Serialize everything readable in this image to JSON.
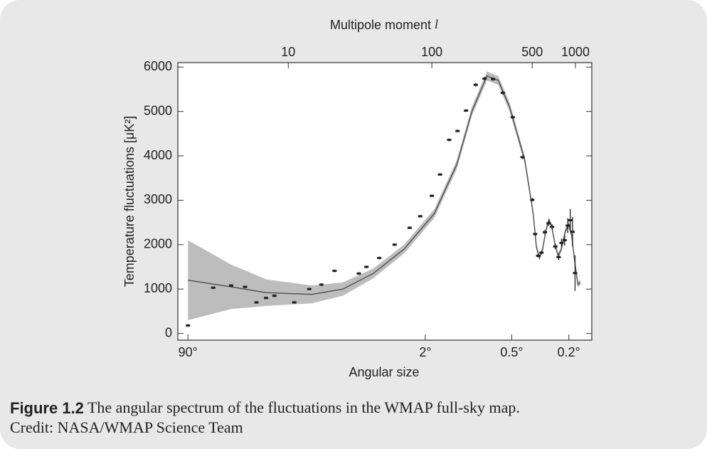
{
  "chart_data": {
    "type": "scatter",
    "x2_label": "Multipole moment",
    "x2_symbol": "l",
    "x_label": "Angular size",
    "y_label": "Temperature fluctuations [μK²]",
    "xscale": "log",
    "xlim": [
      1.7,
      1300
    ],
    "ylim": [
      -150,
      6100
    ],
    "yticks": [
      0,
      1000,
      2000,
      3000,
      4000,
      5000,
      6000
    ],
    "xticks": [
      {
        "value": 2,
        "label": "90°"
      },
      {
        "value": 90,
        "label": "2°"
      },
      {
        "value": 360,
        "label": "0.5°"
      },
      {
        "value": 900,
        "label": "0.2°"
      }
    ],
    "x2ticks": [
      10,
      100,
      500,
      1000
    ],
    "color": "#222222",
    "band_color": "#bdbdbd",
    "x": [
      2,
      3,
      4,
      5,
      6,
      7,
      8,
      11,
      14,
      17,
      21,
      31,
      35,
      43,
      55,
      70,
      83,
      100,
      114,
      132,
      151,
      173,
      202,
      233,
      267,
      312,
      366,
      428,
      501,
      524,
      550,
      580,
      613,
      650,
      688,
      724,
      764,
      800,
      841,
      885,
      921,
      955,
      994
    ],
    "values": [
      180,
      1030,
      1080,
      1050,
      700,
      800,
      850,
      700,
      1000,
      1100,
      1410,
      1350,
      1500,
      1700,
      2000,
      2380,
      2640,
      3100,
      3580,
      4360,
      4560,
      5020,
      5600,
      5740,
      5730,
      5420,
      4870,
      3970,
      3010,
      2240,
      1750,
      1820,
      2280,
      2480,
      2400,
      1960,
      1720,
      2040,
      2100,
      2430,
      2550,
      2290,
      1360
    ],
    "errors": [
      30,
      30,
      30,
      30,
      30,
      30,
      30,
      30,
      30,
      30,
      30,
      30,
      30,
      30,
      30,
      30,
      30,
      30,
      30,
      30,
      30,
      30,
      40,
      40,
      40,
      40,
      40,
      40,
      40,
      40,
      40,
      40,
      50,
      60,
      60,
      60,
      70,
      100,
      120,
      170,
      250,
      330,
      400
    ],
    "model_x": [
      2,
      4,
      7,
      14.6,
      24,
      39,
      64,
      104,
      149,
      190,
      242,
      290,
      348,
      444,
      508,
      535,
      562,
      591,
      621,
      653,
      686,
      721,
      759,
      798,
      851,
      895,
      942,
      990,
      1041,
      1083
    ],
    "model_values": [
      1200,
      1050,
      920,
      880,
      1000,
      1350,
      1900,
      2700,
      3800,
      5000,
      5800,
      5700,
      5100,
      3900,
      2700,
      1950,
      1700,
      1900,
      2300,
      2560,
      2400,
      2000,
      1750,
      1900,
      2300,
      2460,
      2200,
      1600,
      1100,
      1150
    ],
    "model_band": [
      900,
      500,
      300,
      200,
      150,
      110,
      100,
      100,
      100,
      100,
      100,
      100,
      100,
      90,
      80,
      70,
      60,
      60,
      60,
      60,
      60,
      60,
      60,
      60,
      60,
      60,
      60,
      60,
      60,
      60
    ]
  },
  "caption": {
    "label": "Figure 1.2",
    "text": "The angular spectrum of the fluctuations in the WMAP full-sky map.",
    "credit": "Credit: NASA/WMAP Science Team"
  }
}
